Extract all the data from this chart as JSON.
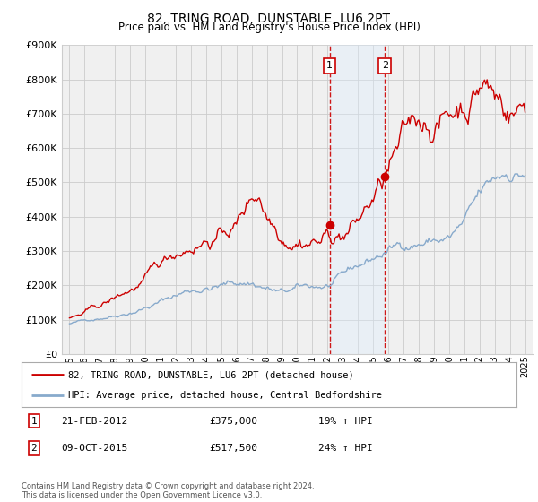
{
  "title": "82, TRING ROAD, DUNSTABLE, LU6 2PT",
  "subtitle": "Price paid vs. HM Land Registry's House Price Index (HPI)",
  "legend_line1": "82, TRING ROAD, DUNSTABLE, LU6 2PT (detached house)",
  "legend_line2": "HPI: Average price, detached house, Central Bedfordshire",
  "footnote": "Contains HM Land Registry data © Crown copyright and database right 2024.\nThis data is licensed under the Open Government Licence v3.0.",
  "sale1_label": "1",
  "sale1_date": "21-FEB-2012",
  "sale1_price": "£375,000",
  "sale1_hpi": "19% ↑ HPI",
  "sale1_year": 2012.13,
  "sale1_value": 375000,
  "sale2_label": "2",
  "sale2_date": "09-OCT-2015",
  "sale2_price": "£517,500",
  "sale2_hpi": "24% ↑ HPI",
  "sale2_year": 2015.77,
  "sale2_value": 517500,
  "red_line_color": "#cc0000",
  "blue_line_color": "#88aacc",
  "grid_color": "#cccccc",
  "shade_color": "#ddeeff",
  "bg_color": "#f0f0f0",
  "ylim": [
    0,
    900000
  ],
  "xlim_start": 1994.5,
  "xlim_end": 2025.5,
  "yticks": [
    0,
    100000,
    200000,
    300000,
    400000,
    500000,
    600000,
    700000,
    800000,
    900000
  ],
  "ytick_labels": [
    "£0",
    "£100K",
    "£200K",
    "£300K",
    "£400K",
    "£500K",
    "£600K",
    "£700K",
    "£800K",
    "£900K"
  ],
  "xtick_years": [
    1995,
    1996,
    1997,
    1998,
    1999,
    2000,
    2001,
    2002,
    2003,
    2004,
    2005,
    2006,
    2007,
    2008,
    2009,
    2010,
    2011,
    2012,
    2013,
    2014,
    2015,
    2016,
    2017,
    2018,
    2019,
    2020,
    2021,
    2022,
    2023,
    2024,
    2025
  ],
  "xtick_labels": [
    "1995",
    "1996",
    "1997",
    "1998",
    "1999",
    "2000",
    "2001",
    "2002",
    "2003",
    "2004",
    "2005",
    "2006",
    "2007",
    "2008",
    "2009",
    "2010",
    "2011",
    "2012",
    "2013",
    "2014",
    "2015",
    "2016",
    "2017",
    "2018",
    "2019",
    "2020",
    "2021",
    "2022",
    "2023",
    "2024",
    "2025"
  ]
}
